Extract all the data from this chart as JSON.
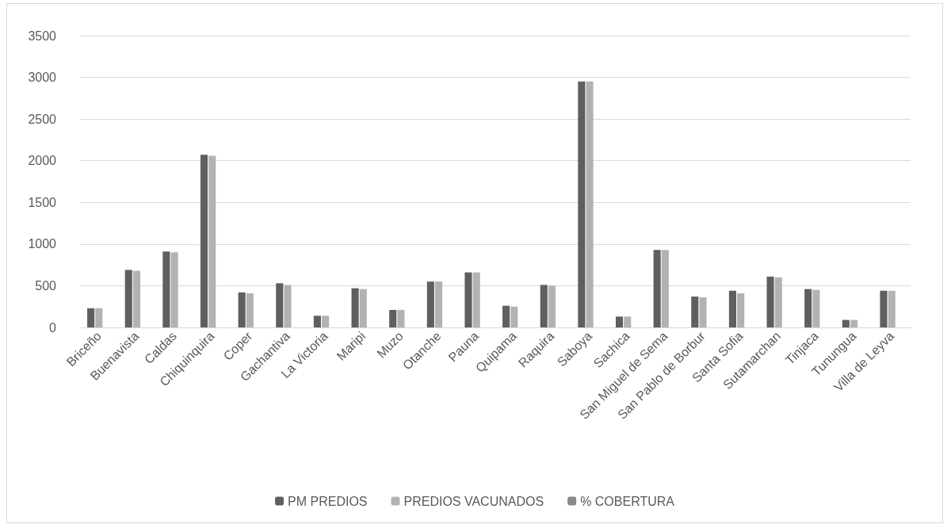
{
  "chart_data": {
    "type": "bar",
    "categories": [
      "Briceño",
      "Buenavista",
      "Caldas",
      "Chiquinquira",
      "Coper",
      "Gachantiva",
      "La Victoria",
      "Maripi",
      "Muzo",
      "Otanche",
      "Pauna",
      "Quipama",
      "Raquira",
      "Saboya",
      "Sachica",
      "San Miguel de Sema",
      "San Pablo de Borbur",
      "Santa Sofia",
      "Sutamarchan",
      "Tinjaca",
      "Tunungua",
      "Villa de Leyva"
    ],
    "series": [
      {
        "name": "PM PREDIOS",
        "color": "#5f5f5f",
        "values": [
          230,
          690,
          910,
          2070,
          420,
          530,
          140,
          470,
          210,
          550,
          660,
          260,
          510,
          2950,
          130,
          930,
          370,
          440,
          610,
          460,
          90,
          440
        ]
      },
      {
        "name": "PREDIOS VACUNADOS",
        "color": "#b2b2b2",
        "values": [
          230,
          680,
          900,
          2060,
          410,
          510,
          140,
          460,
          210,
          550,
          660,
          250,
          500,
          2950,
          130,
          930,
          360,
          410,
          600,
          450,
          90,
          440
        ]
      },
      {
        "name": "% COBERTURA",
        "color": "#8a8a8a",
        "values": [
          null,
          null,
          null,
          null,
          null,
          null,
          null,
          null,
          null,
          null,
          null,
          null,
          null,
          null,
          null,
          null,
          null,
          null,
          null,
          null,
          null,
          null
        ]
      }
    ],
    "ylim": [
      0,
      3500
    ],
    "yticks": [
      0,
      500,
      1000,
      1500,
      2000,
      2500,
      3000,
      3500
    ],
    "grid": "y",
    "legend": "bottom"
  }
}
